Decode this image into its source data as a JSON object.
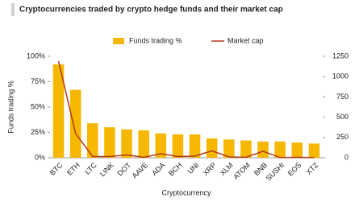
{
  "chart_data": {
    "type": "bar",
    "title": "Cryptocurrencies traded by crypto hedge funds and their market cap",
    "x_label": "Cryptocurrency",
    "y_label": "Funds trading %",
    "categories": [
      "BTC",
      "ETH",
      "LTC",
      "LINK",
      "DOT",
      "AAVE",
      "ADA",
      "BCH",
      "UNI",
      "XRP",
      "XLM",
      "ATOM",
      "BNB",
      "SUSHI",
      "EOS",
      "XTZ"
    ],
    "series": [
      {
        "name": "Funds trading %",
        "type": "bar",
        "color": "#f5b700",
        "values": [
          92,
          67,
          34,
          30,
          28,
          27,
          24,
          23,
          23,
          19,
          18,
          17,
          16,
          16,
          15,
          14
        ]
      },
      {
        "name": "Market cap",
        "type": "line",
        "axis": "y2",
        "color": "#b03a1a",
        "values": [
          1190,
          300,
          15,
          15,
          35,
          5,
          50,
          15,
          20,
          85,
          10,
          5,
          80,
          2,
          5,
          3
        ]
      }
    ],
    "ylim": [
      0,
      100
    ],
    "yticks": [
      {
        "value": 0,
        "label": "0%"
      },
      {
        "value": 25,
        "label": "25%"
      },
      {
        "value": 50,
        "label": "50%"
      },
      {
        "value": 75,
        "label": "75%"
      },
      {
        "value": 100,
        "label": "100%"
      }
    ],
    "y2lim": [
      0,
      1250
    ],
    "y2ticks": [
      0,
      250,
      500,
      750,
      1000,
      1250
    ],
    "grid": false,
    "legend": "top"
  }
}
